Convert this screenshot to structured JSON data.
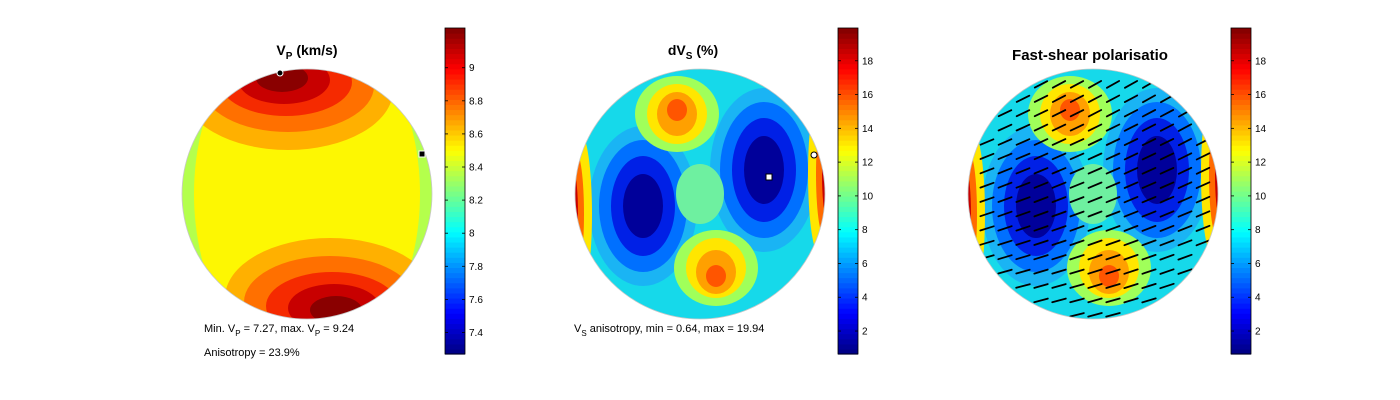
{
  "chart_data": [
    {
      "type": "heatmap",
      "title": "V",
      "title_sub": "P",
      "title_rest": " (km/s)",
      "colorbar_ticks": [
        7.4,
        7.6,
        7.8,
        8,
        8.2,
        8.4,
        8.6,
        8.8,
        9
      ],
      "colorbar_range": [
        7.27,
        9.24
      ],
      "min_value": 7.27,
      "max_value": 9.24,
      "anisotropy_percent": 23.9,
      "annotation_line1": {
        "t1": "Min. V",
        "s1": "P",
        "t2": " =  7.27, max. V",
        "s2": "P",
        "t3": " =  9.24"
      },
      "annotation_line2": "Anisotropy =  23.9%",
      "markers": [
        "max-circle",
        "min-square"
      ]
    },
    {
      "type": "heatmap",
      "title": "dV",
      "title_sub": "S",
      "title_rest": " (%)",
      "colorbar_ticks": [
        2,
        4,
        6,
        8,
        10,
        12,
        14,
        16,
        18
      ],
      "colorbar_range": [
        0.64,
        19.94
      ],
      "min_value": 0.64,
      "max_value": 19.94,
      "annotation_line1": {
        "t1": "V",
        "s1": "S",
        "t2": " anisotropy, min =  0.64, max = 19.94"
      },
      "markers": [
        "max-square",
        "min-circle"
      ]
    },
    {
      "type": "heatmap",
      "title": "Fast-shear polarisatio",
      "colorbar_ticks": [
        2,
        4,
        6,
        8,
        10,
        12,
        14,
        16,
        18
      ],
      "colorbar_range": [
        0.64,
        19.94
      ],
      "overlay": "polarisation-ticks"
    }
  ],
  "colormap": "jet"
}
